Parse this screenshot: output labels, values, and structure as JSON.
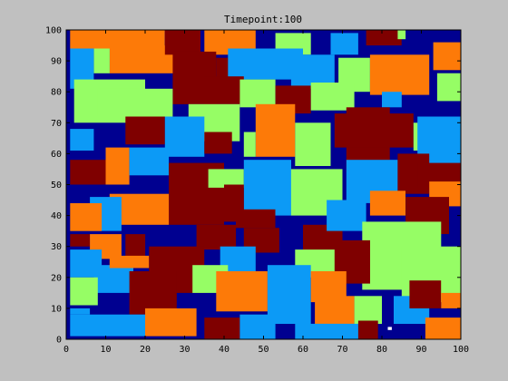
{
  "colors": {
    "figure_bg": "#c0c0c0",
    "axes_bg": "#000090",
    "axes_frame": "#000000"
  },
  "chart_data": {
    "type": "heatmap",
    "title": "Timepoint:100",
    "xlabel": "",
    "ylabel": "",
    "xlim": [
      0,
      100
    ],
    "ylim": [
      0,
      100
    ],
    "xticks": [
      0,
      10,
      20,
      30,
      40,
      50,
      60,
      70,
      80,
      90,
      100
    ],
    "yticks": [
      0,
      10,
      20,
      30,
      40,
      50,
      60,
      70,
      80,
      90,
      100
    ],
    "grid": false,
    "legend": "none",
    "background_value": "navy",
    "palette": {
      "navy": "#000090",
      "blue": "#0c9af6",
      "green": "#96fd65",
      "orange": "#fd7a08",
      "maroon": "#7f0000",
      "white": "#ffffff"
    },
    "regions": [
      {
        "color": "orange",
        "x": [
          1,
          25
        ],
        "y": [
          94,
          100
        ]
      },
      {
        "color": "orange",
        "x": [
          11,
          28
        ],
        "y": [
          86,
          95
        ]
      },
      {
        "color": "maroon",
        "x": [
          25,
          34
        ],
        "y": [
          92,
          100
        ]
      },
      {
        "color": "orange",
        "x": [
          35,
          48
        ],
        "y": [
          92,
          100
        ]
      },
      {
        "color": "green",
        "x": [
          53,
          62
        ],
        "y": [
          92,
          99
        ]
      },
      {
        "color": "blue",
        "x": [
          67,
          74
        ],
        "y": [
          92,
          99
        ]
      },
      {
        "color": "maroon",
        "x": [
          76,
          85
        ],
        "y": [
          95,
          100
        ]
      },
      {
        "color": "green",
        "x": [
          84,
          86
        ],
        "y": [
          97,
          100
        ]
      },
      {
        "color": "blue",
        "x": [
          1,
          7
        ],
        "y": [
          81,
          94
        ]
      },
      {
        "color": "green",
        "x": [
          7,
          11
        ],
        "y": [
          86,
          94
        ]
      },
      {
        "color": "maroon",
        "x": [
          27,
          38
        ],
        "y": [
          76,
          93
        ]
      },
      {
        "color": "maroon",
        "x": [
          38,
          44
        ],
        "y": [
          84,
          91
        ]
      },
      {
        "color": "blue",
        "x": [
          41,
          60
        ],
        "y": [
          84,
          94
        ]
      },
      {
        "color": "blue",
        "x": [
          57,
          68
        ],
        "y": [
          81,
          92
        ]
      },
      {
        "color": "green",
        "x": [
          69,
          77
        ],
        "y": [
          80,
          91
        ]
      },
      {
        "color": "orange",
        "x": [
          77,
          92
        ],
        "y": [
          79,
          92
        ]
      },
      {
        "color": "orange",
        "x": [
          93,
          100
        ],
        "y": [
          87,
          96
        ]
      },
      {
        "color": "green",
        "x": [
          94,
          100
        ],
        "y": [
          77,
          86
        ]
      },
      {
        "color": "green",
        "x": [
          2,
          20
        ],
        "y": [
          70,
          84
        ]
      },
      {
        "color": "green",
        "x": [
          8,
          27
        ],
        "y": [
          72,
          81
        ]
      },
      {
        "color": "maroon",
        "x": [
          35,
          45
        ],
        "y": [
          76,
          85
        ]
      },
      {
        "color": "green",
        "x": [
          44,
          53
        ],
        "y": [
          75,
          84
        ]
      },
      {
        "color": "maroon",
        "x": [
          53,
          62
        ],
        "y": [
          73,
          82
        ]
      },
      {
        "color": "green",
        "x": [
          62,
          73
        ],
        "y": [
          74,
          83
        ]
      },
      {
        "color": "blue",
        "x": [
          80,
          85
        ],
        "y": [
          75,
          80
        ]
      },
      {
        "color": "maroon",
        "x": [
          71,
          82
        ],
        "y": [
          54,
          75
        ]
      },
      {
        "color": "maroon",
        "x": [
          68,
          88
        ],
        "y": [
          62,
          73
        ]
      },
      {
        "color": "green",
        "x": [
          88,
          94
        ],
        "y": [
          61,
          70
        ]
      },
      {
        "color": "blue",
        "x": [
          89,
          100
        ],
        "y": [
          56,
          72
        ]
      },
      {
        "color": "maroon",
        "x": [
          15,
          25
        ],
        "y": [
          63,
          72
        ]
      },
      {
        "color": "green",
        "x": [
          31,
          44
        ],
        "y": [
          64,
          76
        ]
      },
      {
        "color": "blue",
        "x": [
          25,
          35
        ],
        "y": [
          59,
          72
        ]
      },
      {
        "color": "orange",
        "x": [
          48,
          58
        ],
        "y": [
          59,
          76
        ]
      },
      {
        "color": "green",
        "x": [
          45,
          48
        ],
        "y": [
          59,
          67
        ]
      },
      {
        "color": "green",
        "x": [
          58,
          67
        ],
        "y": [
          56,
          70
        ]
      },
      {
        "color": "maroon",
        "x": [
          35,
          42
        ],
        "y": [
          60,
          67
        ]
      },
      {
        "color": "blue",
        "x": [
          1,
          7
        ],
        "y": [
          61,
          68
        ]
      },
      {
        "color": "maroon",
        "x": [
          1,
          10
        ],
        "y": [
          50,
          58
        ]
      },
      {
        "color": "orange",
        "x": [
          10,
          16
        ],
        "y": [
          50,
          62
        ]
      },
      {
        "color": "blue",
        "x": [
          16,
          26
        ],
        "y": [
          53,
          62
        ]
      },
      {
        "color": "maroon",
        "x": [
          26,
          40
        ],
        "y": [
          37,
          57
        ]
      },
      {
        "color": "green",
        "x": [
          36,
          45
        ],
        "y": [
          49,
          55
        ]
      },
      {
        "color": "blue",
        "x": [
          45,
          57
        ],
        "y": [
          40,
          58
        ]
      },
      {
        "color": "green",
        "x": [
          57,
          70
        ],
        "y": [
          40,
          55
        ]
      },
      {
        "color": "blue",
        "x": [
          71,
          84
        ],
        "y": [
          44,
          58
        ]
      },
      {
        "color": "maroon",
        "x": [
          84,
          92
        ],
        "y": [
          47,
          60
        ]
      },
      {
        "color": "maroon",
        "x": [
          89,
          100
        ],
        "y": [
          49,
          57
        ]
      },
      {
        "color": "orange",
        "x": [
          92,
          100
        ],
        "y": [
          43,
          51
        ]
      },
      {
        "color": "orange",
        "x": [
          77,
          86
        ],
        "y": [
          40,
          48
        ]
      },
      {
        "color": "maroon",
        "x": [
          86,
          97
        ],
        "y": [
          34,
          46
        ]
      },
      {
        "color": "maroon",
        "x": [
          40,
          45
        ],
        "y": [
          38,
          50
        ]
      },
      {
        "color": "orange",
        "x": [
          11,
          26
        ],
        "y": [
          37,
          47
        ]
      },
      {
        "color": "blue",
        "x": [
          6,
          14
        ],
        "y": [
          35,
          46
        ]
      },
      {
        "color": "orange",
        "x": [
          1,
          9
        ],
        "y": [
          35,
          44
        ]
      },
      {
        "color": "maroon",
        "x": [
          1,
          6
        ],
        "y": [
          30,
          34
        ]
      },
      {
        "color": "orange",
        "x": [
          6,
          14
        ],
        "y": [
          26,
          34
        ]
      },
      {
        "color": "maroon",
        "x": [
          15,
          20
        ],
        "y": [
          26,
          34
        ]
      },
      {
        "color": "maroon",
        "x": [
          33,
          43
        ],
        "y": [
          29,
          37
        ]
      },
      {
        "color": "maroon",
        "x": [
          43,
          53
        ],
        "y": [
          36,
          42
        ]
      },
      {
        "color": "maroon",
        "x": [
          45,
          54
        ],
        "y": [
          28,
          36
        ]
      },
      {
        "color": "maroon",
        "x": [
          60,
          70
        ],
        "y": [
          24,
          37
        ]
      },
      {
        "color": "blue",
        "x": [
          66,
          76
        ],
        "y": [
          35,
          45
        ]
      },
      {
        "color": "green",
        "x": [
          75,
          95
        ],
        "y": [
          16,
          38
        ]
      },
      {
        "color": "green",
        "x": [
          85,
          100
        ],
        "y": [
          12,
          30
        ]
      },
      {
        "color": "maroon",
        "x": [
          67,
          77
        ],
        "y": [
          18,
          32
        ]
      },
      {
        "color": "green",
        "x": [
          58,
          68
        ],
        "y": [
          20,
          29
        ]
      },
      {
        "color": "blue",
        "x": [
          1,
          9
        ],
        "y": [
          20,
          29
        ]
      },
      {
        "color": "blue",
        "x": [
          7,
          17
        ],
        "y": [
          15,
          24
        ]
      },
      {
        "color": "green",
        "x": [
          1,
          8
        ],
        "y": [
          11,
          20
        ]
      },
      {
        "color": "orange",
        "x": [
          11,
          21
        ],
        "y": [
          23,
          27
        ]
      },
      {
        "color": "maroon",
        "x": [
          21,
          35
        ],
        "y": [
          15,
          30
        ]
      },
      {
        "color": "maroon",
        "x": [
          16,
          28
        ],
        "y": [
          8,
          22
        ]
      },
      {
        "color": "blue",
        "x": [
          39,
          48
        ],
        "y": [
          20,
          30
        ]
      },
      {
        "color": "green",
        "x": [
          32,
          41
        ],
        "y": [
          15,
          24
        ]
      },
      {
        "color": "orange",
        "x": [
          38,
          51
        ],
        "y": [
          9,
          22
        ]
      },
      {
        "color": "blue",
        "x": [
          51,
          62
        ],
        "y": [
          5,
          24
        ]
      },
      {
        "color": "orange",
        "x": [
          62,
          71
        ],
        "y": [
          12,
          22
        ]
      },
      {
        "color": "orange",
        "x": [
          63,
          73
        ],
        "y": [
          5,
          14
        ]
      },
      {
        "color": "green",
        "x": [
          73,
          80
        ],
        "y": [
          5,
          14
        ]
      },
      {
        "color": "blue",
        "x": [
          83,
          92
        ],
        "y": [
          5,
          14
        ]
      },
      {
        "color": "maroon",
        "x": [
          87,
          95
        ],
        "y": [
          10,
          19
        ]
      },
      {
        "color": "orange",
        "x": [
          95,
          100
        ],
        "y": [
          10,
          15
        ]
      },
      {
        "color": "blue",
        "x": [
          1,
          20
        ],
        "y": [
          1,
          8
        ]
      },
      {
        "color": "blue",
        "x": [
          1,
          6
        ],
        "y": [
          8,
          10
        ]
      },
      {
        "color": "orange",
        "x": [
          20,
          33
        ],
        "y": [
          1,
          10
        ]
      },
      {
        "color": "maroon",
        "x": [
          35,
          44
        ],
        "y": [
          0,
          7
        ]
      },
      {
        "color": "blue",
        "x": [
          44,
          53
        ],
        "y": [
          0,
          8
        ]
      },
      {
        "color": "blue",
        "x": [
          58,
          76
        ],
        "y": [
          0,
          5
        ]
      },
      {
        "color": "orange",
        "x": [
          91,
          100
        ],
        "y": [
          0,
          7
        ]
      },
      {
        "color": "maroon",
        "x": [
          74,
          79
        ],
        "y": [
          0,
          6
        ]
      },
      {
        "color": "white",
        "x": [
          81.5,
          82.5
        ],
        "y": [
          3,
          4
        ]
      }
    ]
  }
}
